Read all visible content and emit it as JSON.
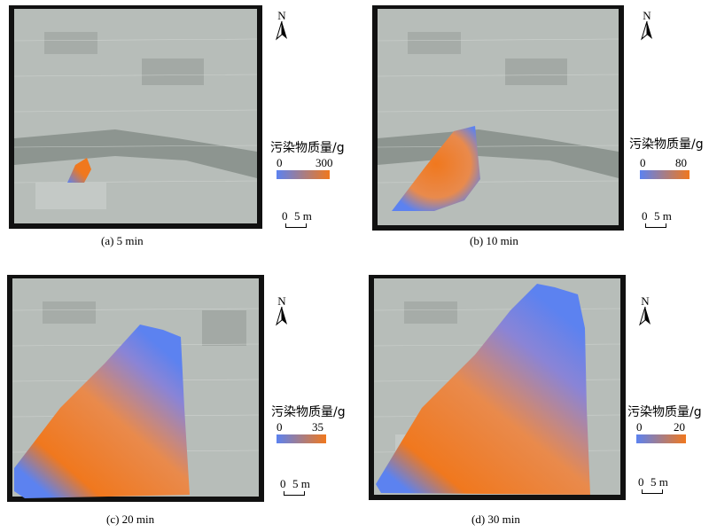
{
  "legend_title": "污染物质量/g",
  "north_label": "N",
  "scale": {
    "zero": "0",
    "length": "5 m"
  },
  "colors": {
    "low": "#5c82f0",
    "high": "#f0781e",
    "background": "#b7bdb9",
    "river": "#8d9590",
    "frame": "#111111"
  },
  "panels": [
    {
      "caption": "(a) 5 min",
      "legend_min": "0",
      "legend_max": "300"
    },
    {
      "caption": "(b) 10 min",
      "legend_min": "0",
      "legend_max": "80"
    },
    {
      "caption": "(c) 20 min",
      "legend_min": "0",
      "legend_max": "35"
    },
    {
      "caption": "(d) 30 min",
      "legend_min": "0",
      "legend_max": "20"
    }
  ]
}
